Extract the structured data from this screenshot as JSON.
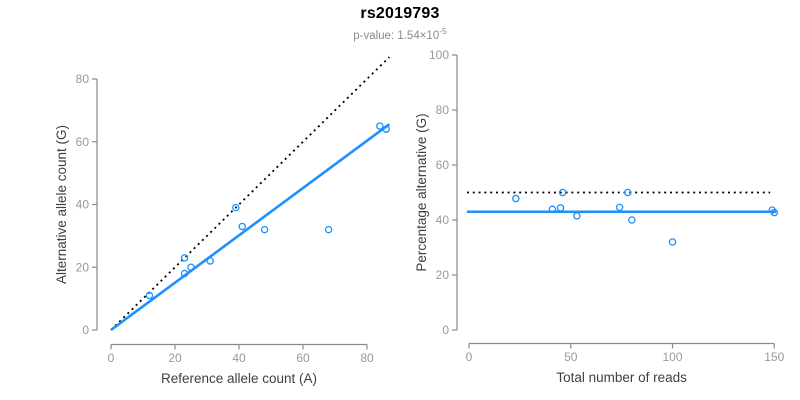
{
  "figure": {
    "title": "rs2019793",
    "subtitle_prefix": "p-value: 1.54×10",
    "subtitle_exponent": "-5"
  },
  "colors": {
    "fit_line": "#1E90FF",
    "reference_line": "#000000",
    "axis": "#8a8a8a",
    "tick_label": "#999999",
    "axis_title": "#404040",
    "title": "#000000",
    "subtitle": "#8a8a8a"
  },
  "chart_data": [
    {
      "type": "scatter",
      "title": "",
      "xlabel": "Reference allele count (A)",
      "ylabel": "Alternative allele count (G)",
      "xlim": [
        0,
        87
      ],
      "ylim": [
        0,
        88
      ],
      "xticks": [
        0,
        20,
        40,
        60,
        80
      ],
      "yticks": [
        0,
        20,
        40,
        60,
        80
      ],
      "grid": false,
      "legend": false,
      "points": [
        [
          12,
          11
        ],
        [
          23,
          18
        ],
        [
          23,
          23
        ],
        [
          25,
          20
        ],
        [
          31,
          22
        ],
        [
          39,
          39
        ],
        [
          41,
          33
        ],
        [
          48,
          32
        ],
        [
          68,
          32
        ],
        [
          84,
          65
        ],
        [
          86,
          64
        ]
      ],
      "lines": [
        {
          "name": "identity-line",
          "style": "dotted",
          "color": "#000000",
          "x1": 0,
          "y1": 0,
          "x2": 87,
          "y2": 87
        },
        {
          "name": "regression-line",
          "style": "solid",
          "color": "#1E90FF",
          "x1": 0,
          "y1": 0,
          "x2": 87,
          "y2": 65.6
        }
      ]
    },
    {
      "type": "scatter",
      "title": "",
      "xlabel": "Total number of reads",
      "ylabel": "Percentage alternative (G)",
      "xlim": [
        0,
        151
      ],
      "ylim": [
        0,
        100
      ],
      "xticks": [
        0,
        50,
        100,
        150
      ],
      "yticks": [
        0,
        20,
        40,
        60,
        80,
        100
      ],
      "grid": false,
      "legend": false,
      "points": [
        [
          23,
          47.8
        ],
        [
          41,
          43.9
        ],
        [
          45,
          44.4
        ],
        [
          46,
          50
        ],
        [
          53,
          41.5
        ],
        [
          74,
          44.6
        ],
        [
          78,
          50
        ],
        [
          80,
          40
        ],
        [
          100,
          32
        ],
        [
          149,
          43.6
        ],
        [
          150,
          42.7
        ]
      ],
      "lines": [
        {
          "name": "expected-percentage-line",
          "style": "dotted",
          "color": "#000000",
          "x1": -1,
          "y1": 50,
          "x2": 148,
          "y2": 50
        },
        {
          "name": "fit-percentage-line",
          "style": "solid",
          "color": "#1E90FF",
          "x1": -1,
          "y1": 43,
          "x2": 151,
          "y2": 43
        }
      ]
    }
  ]
}
